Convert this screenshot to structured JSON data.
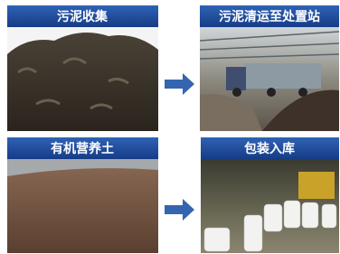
{
  "panels": [
    {
      "label": "污泥收集"
    },
    {
      "label": "污泥清运至处置站"
    },
    {
      "label": "有机营养土"
    },
    {
      "label": "包装入库"
    }
  ]
}
